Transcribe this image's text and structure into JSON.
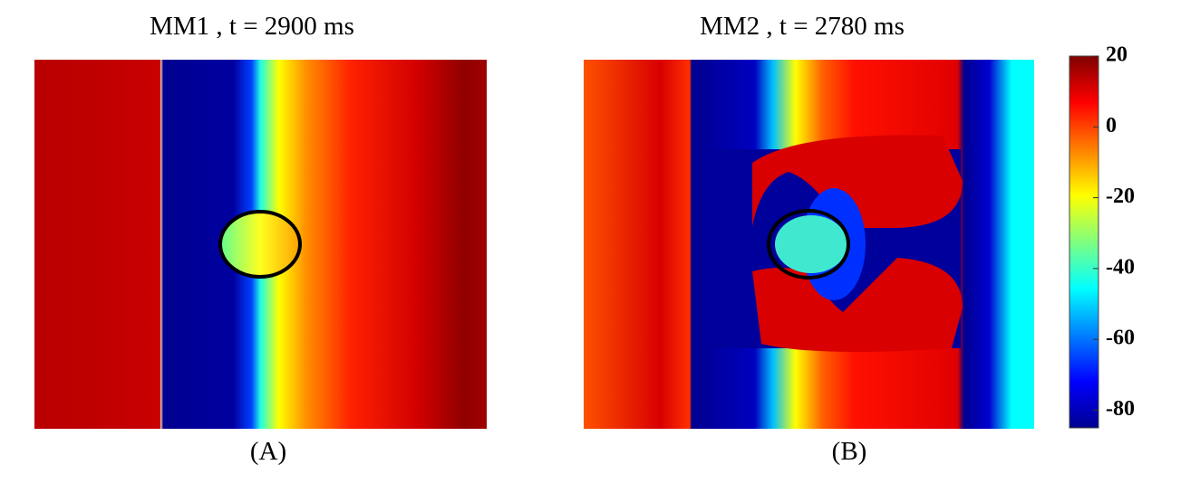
{
  "panels": [
    {
      "title": "MM1 , t = 2900 ms",
      "label": "(A)"
    },
    {
      "title": "MM2 , t = 2780 ms",
      "label": "(B)"
    }
  ],
  "colorbar": {
    "lim": [
      -85,
      20
    ],
    "ticks": [
      20,
      0,
      -20,
      -40,
      -60,
      -80
    ]
  }
}
